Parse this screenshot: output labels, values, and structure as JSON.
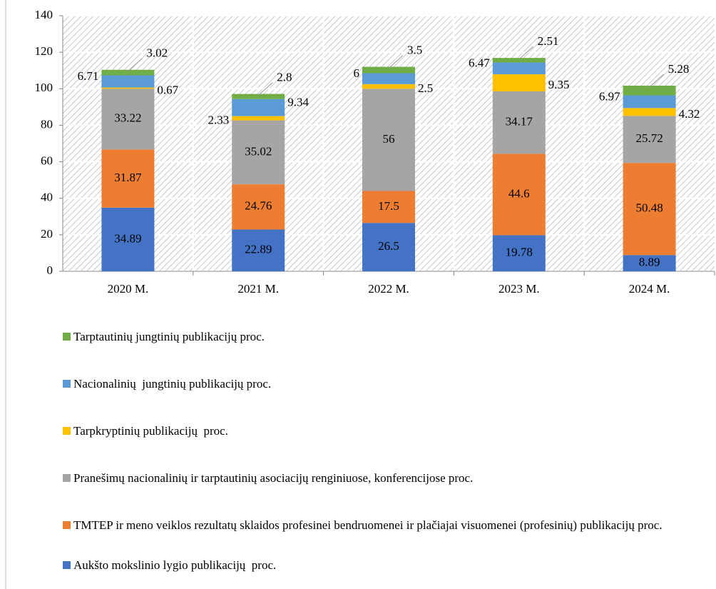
{
  "chart_data": {
    "type": "stacked_bar",
    "categories": [
      "2020 M.",
      "2021 M.",
      "2022 M.",
      "2023 M.",
      "2024 M."
    ],
    "series": [
      {
        "name": "Aukšto mokslinio lygio publikacijų  proc.",
        "color": "#4472c4",
        "values": [
          34.89,
          22.89,
          26.5,
          19.78,
          8.89
        ]
      },
      {
        "name": "TMTEP ir meno veiklos rezultatų sklaidos profesinei bendruomenei ir plačiajai visuomenei (profesinių) publikacijų proc.",
        "color": "#ed7d31",
        "values": [
          31.87,
          24.76,
          17.5,
          44.6,
          50.48
        ]
      },
      {
        "name": "Pranešimų nacionalinių ir tarptautinių asociacijų renginiuose, konferencijose proc.",
        "color": "#a5a5a5",
        "values": [
          33.22,
          35.02,
          56,
          34.17,
          25.72
        ]
      },
      {
        "name": "Tarpkryptinių publikacijų  proc.",
        "color": "#ffc000",
        "values": [
          0.67,
          2.33,
          2.5,
          9.35,
          4.32
        ]
      },
      {
        "name": "Nacionalinių  jungtinių publikacijų proc.",
        "color": "#5b9bd5",
        "values": [
          6.71,
          9.34,
          6,
          6.47,
          6.97
        ]
      },
      {
        "name": "Tarptautinių jungtinių publikacijų proc.",
        "color": "#70ad47",
        "values": [
          3.02,
          2.8,
          3.5,
          2.51,
          5.28
        ]
      }
    ],
    "ylim": [
      0,
      140
    ],
    "yticks": [
      0,
      20,
      40,
      60,
      80,
      100,
      120,
      140
    ],
    "grid": true,
    "legend": "bottom"
  }
}
